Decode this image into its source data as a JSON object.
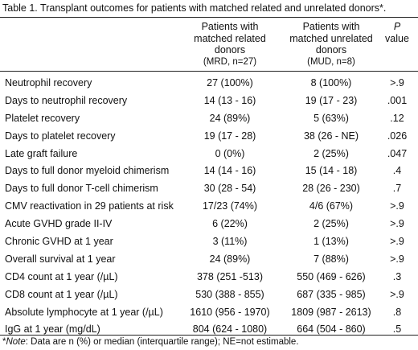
{
  "caption": "Table 1. Transplant outcomes for patients with matched related and unrelated donors*.",
  "header": {
    "mrd": {
      "line1": "Patients with",
      "line2": "matched related",
      "line3": "donors",
      "line4": "(MRD, n=27)"
    },
    "mud": {
      "line1": "Patients with",
      "line2": "matched unrelated",
      "line3": "donors",
      "line4": "(MUD, n=8)"
    },
    "p": {
      "line1": "P",
      "line2": "value"
    }
  },
  "rows": [
    {
      "label": "Neutrophil recovery",
      "mrd": "27 (100%)",
      "mud": "8 (100%)",
      "p": ">.9"
    },
    {
      "label": "Days to neutrophil recovery",
      "mrd": "14 (13 - 16)",
      "mud": "19 (17 - 23)",
      "p": ".001"
    },
    {
      "label": "Platelet recovery",
      "mrd": "24 (89%)",
      "mud": "5 (63%)",
      "p": ".12"
    },
    {
      "label": "Days to platelet recovery",
      "mrd": "19 (17 - 28)",
      "mud": "38 (26 - NE)",
      "p": ".026"
    },
    {
      "label": "Late graft failure",
      "mrd": "0 (0%)",
      "mud": "2 (25%)",
      "p": ".047"
    },
    {
      "label": "Days to full donor myeloid chimerism",
      "mrd": "14 (14 - 16)",
      "mud": "15 (14 - 18)",
      "p": ".4"
    },
    {
      "label": "Days to full donor T-cell chimerism",
      "mrd": "30 (28 - 54)",
      "mud": "28 (26 - 230)",
      "p": ".7"
    },
    {
      "label": "CMV reactivation in 29 patients at risk",
      "mrd": "17/23 (74%)",
      "mud": "4/6 (67%)",
      "p": ">.9"
    },
    {
      "label": "Acute GVHD grade II-IV",
      "mrd": "6 (22%)",
      "mud": "2 (25%)",
      "p": ">.9"
    },
    {
      "label": "Chronic GVHD at 1 year",
      "mrd": "3 (11%)",
      "mud": "1 (13%)",
      "p": ">.9"
    },
    {
      "label": "Overall survival at 1 year",
      "mrd": "24 (89%)",
      "mud": "7 (88%)",
      "p": ">.9"
    },
    {
      "label": "CD4 count at 1 year (/µL)",
      "mrd": "378 (251 -513)",
      "mud": "550 (469 - 626)",
      "p": ".3"
    },
    {
      "label": "CD8 count at 1 year (/µL)",
      "mrd": "530 (388 - 855)",
      "mud": "687 (335 - 985)",
      "p": ">.9"
    },
    {
      "label": "Absolute lymphocyte at 1 year (/µL)",
      "mrd": "1610 (956 - 1970)",
      "mud": "1809 (987 - 2613)",
      "p": ".8"
    },
    {
      "label": "IgG at 1 year (mg/dL)",
      "mrd": "804 (624 - 1080)",
      "mud": "664 (504 - 860)",
      "p": ".5"
    }
  ],
  "footnote": {
    "marker": "*",
    "note_label": "Note",
    "text": ": Data are n (%) or median (interquartile range); NE=not estimable."
  }
}
